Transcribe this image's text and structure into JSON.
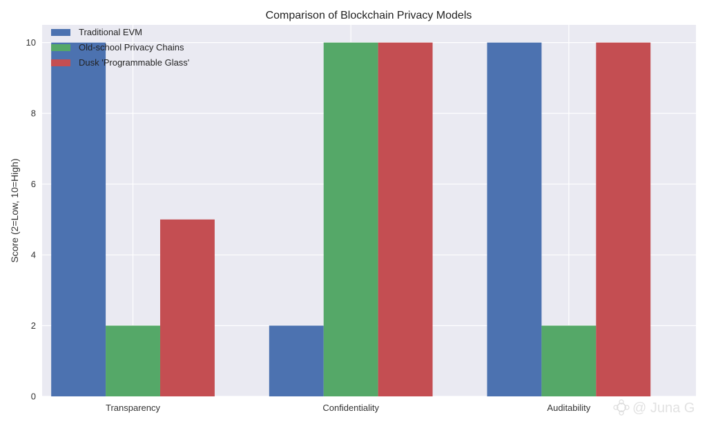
{
  "chart_data": {
    "type": "bar",
    "title": "Comparison of Blockchain Privacy Models",
    "xlabel": "",
    "ylabel": "Score (2=Low, 10=High)",
    "categories": [
      "Transparency",
      "Confidentiality",
      "Auditability"
    ],
    "series": [
      {
        "name": "Traditional EVM",
        "color": "#4c72b0",
        "values": [
          10,
          2,
          10
        ]
      },
      {
        "name": "Old-school Privacy Chains",
        "color": "#55a868",
        "values": [
          2,
          10,
          2
        ]
      },
      {
        "name": "Dusk 'Programmable Glass'",
        "color": "#c44e52",
        "values": [
          5,
          10,
          10
        ]
      }
    ],
    "ylim": [
      0,
      10.5
    ],
    "yticks": [
      0,
      2,
      4,
      6,
      8,
      10
    ],
    "grid": true,
    "legend_position": "top-left",
    "background_color": "#eaeaf2"
  },
  "watermark": {
    "text": "@ Juna G",
    "icon": "gear-flower-icon"
  }
}
